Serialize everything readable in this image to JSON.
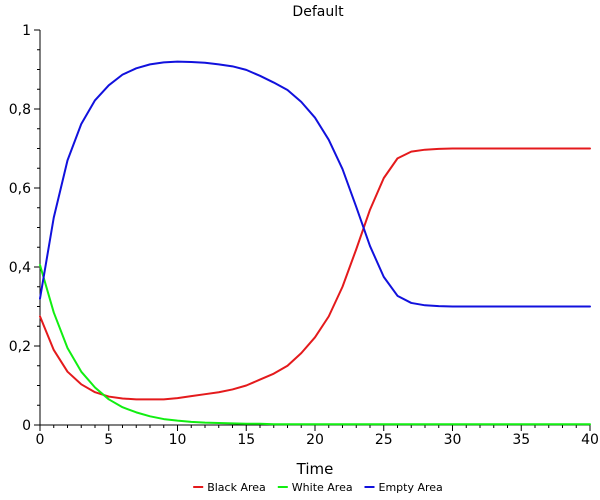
{
  "chart_data": {
    "type": "line",
    "title": "Default",
    "xlabel": "Time",
    "ylabel": "",
    "xlim": [
      0,
      40
    ],
    "ylim": [
      0,
      1
    ],
    "x_ticks": [
      "0",
      "5",
      "10",
      "15",
      "20",
      "25",
      "30",
      "35",
      "40"
    ],
    "y_ticks": [
      "0",
      "0,2",
      "0,4",
      "0,6",
      "0,8",
      "1"
    ],
    "grid": false,
    "legend_position": "bottom",
    "x": [
      0,
      1,
      2,
      3,
      4,
      5,
      6,
      7,
      8,
      9,
      10,
      11,
      12,
      13,
      14,
      15,
      16,
      17,
      18,
      19,
      20,
      21,
      22,
      23,
      24,
      25,
      26,
      27,
      28,
      29,
      30,
      31,
      32,
      33,
      34,
      35,
      36,
      37,
      38,
      39,
      40
    ],
    "series": [
      {
        "name": "Black Area",
        "color": "#e41a1c",
        "values": [
          0.275,
          0.19,
          0.135,
          0.103,
          0.083,
          0.072,
          0.067,
          0.065,
          0.065,
          0.065,
          0.068,
          0.073,
          0.078,
          0.083,
          0.09,
          0.1,
          0.115,
          0.13,
          0.15,
          0.182,
          0.222,
          0.275,
          0.35,
          0.445,
          0.545,
          0.625,
          0.675,
          0.692,
          0.697,
          0.699,
          0.7,
          0.7,
          0.7,
          0.7,
          0.7,
          0.7,
          0.7,
          0.7,
          0.7,
          0.7,
          0.7
        ]
      },
      {
        "name": "White Area",
        "color": "#11ee11",
        "values": [
          0.405,
          0.285,
          0.195,
          0.135,
          0.095,
          0.065,
          0.045,
          0.032,
          0.022,
          0.015,
          0.011,
          0.008,
          0.006,
          0.005,
          0.004,
          0.003,
          0.003,
          0.002,
          0.002,
          0.002,
          0.002,
          0.002,
          0.002,
          0.002,
          0.002,
          0.002,
          0.002,
          0.002,
          0.002,
          0.002,
          0.002,
          0.002,
          0.002,
          0.002,
          0.002,
          0.002,
          0.002,
          0.002,
          0.002,
          0.002,
          0.002
        ]
      },
      {
        "name": "Empty Area",
        "color": "#1111dd",
        "values": [
          0.32,
          0.525,
          0.67,
          0.762,
          0.822,
          0.86,
          0.887,
          0.903,
          0.913,
          0.918,
          0.92,
          0.919,
          0.917,
          0.913,
          0.908,
          0.899,
          0.884,
          0.867,
          0.848,
          0.818,
          0.778,
          0.722,
          0.648,
          0.552,
          0.453,
          0.375,
          0.327,
          0.309,
          0.303,
          0.301,
          0.3,
          0.3,
          0.3,
          0.3,
          0.3,
          0.3,
          0.3,
          0.3,
          0.3,
          0.3,
          0.3
        ]
      }
    ]
  }
}
